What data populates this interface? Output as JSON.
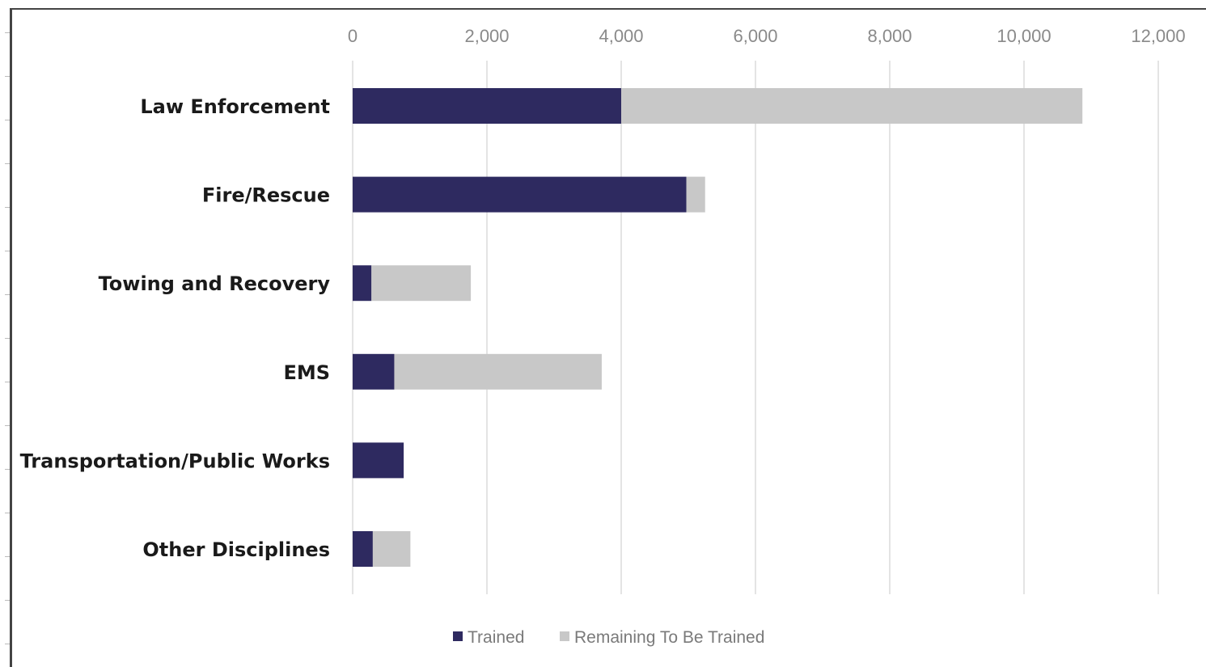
{
  "chart_data": {
    "type": "bar",
    "orientation": "horizontal",
    "stacked": true,
    "title": "",
    "xlabel": "",
    "ylabel": "",
    "categories": [
      "Law Enforcement",
      "Fire/Rescue",
      "Towing and Recovery",
      "EMS",
      "Transportation/Public Works",
      "Other Disciplines"
    ],
    "series": [
      {
        "name": "Trained",
        "color": "#2e2a60",
        "values": [
          4000,
          4970,
          280,
          620,
          760,
          300
        ]
      },
      {
        "name": "Remaining To Be Trained",
        "color": "#c8c8c8",
        "values": [
          6870,
          280,
          1480,
          3090,
          0,
          560
        ]
      }
    ],
    "xlim": [
      0,
      12000
    ],
    "xticks": [
      0,
      2000,
      4000,
      6000,
      8000,
      10000,
      12000
    ],
    "xtick_labels": [
      "0",
      "2,000",
      "4,000",
      "6,000",
      "8,000",
      "10,000",
      "12,000"
    ],
    "x_axis_position": "top",
    "grid": true,
    "legend_position": "bottom-center"
  }
}
